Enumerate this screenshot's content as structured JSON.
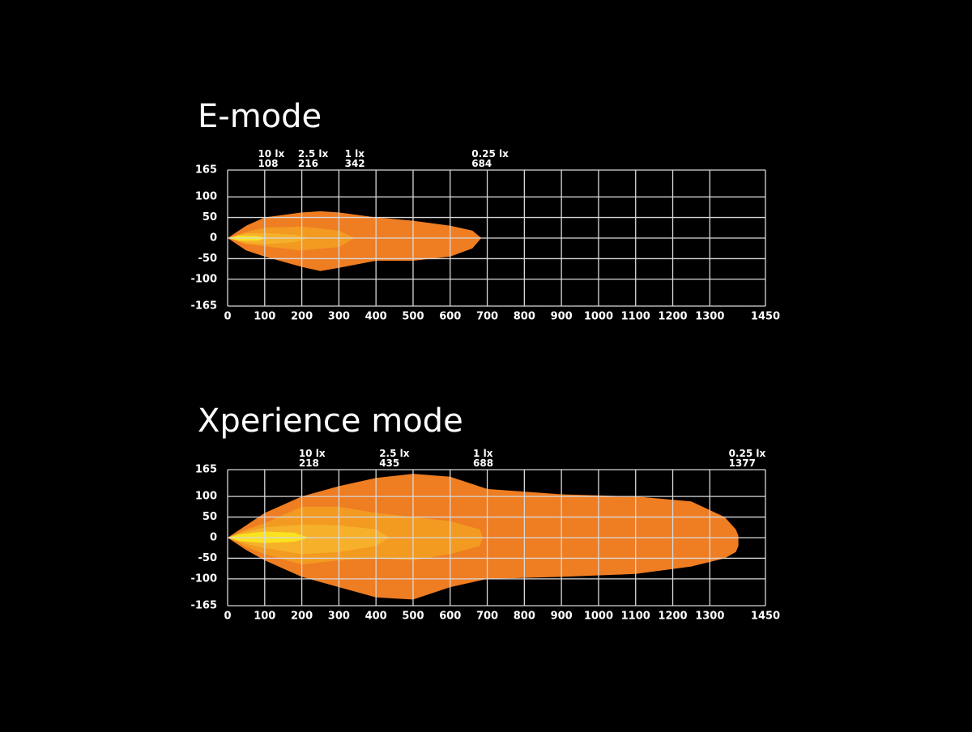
{
  "chart_data": [
    {
      "type": "isolux",
      "title": "E-mode",
      "xlim": [
        0,
        1450
      ],
      "ylim": [
        -165,
        165
      ],
      "xticks": [
        0,
        100,
        200,
        300,
        400,
        500,
        600,
        700,
        800,
        900,
        1000,
        1100,
        1200,
        1300,
        1450
      ],
      "yticks": [
        165,
        100,
        50,
        0,
        -50,
        -100,
        -165
      ],
      "grid": true,
      "series": [
        {
          "name": "0.25 lx",
          "reach": 684,
          "color": "#ef7d22",
          "x": [
            0,
            50,
            100,
            200,
            250,
            300,
            400,
            500,
            600,
            660,
            684
          ],
          "upper": [
            0,
            30,
            50,
            62,
            65,
            62,
            50,
            42,
            30,
            18,
            0
          ],
          "lower": [
            0,
            -30,
            -45,
            -70,
            -80,
            -72,
            -55,
            -55,
            -45,
            -25,
            0
          ]
        },
        {
          "name": "1 lx",
          "reach": 342,
          "color": "#f39a21",
          "x": [
            0,
            50,
            100,
            200,
            300,
            342
          ],
          "upper": [
            0,
            15,
            25,
            28,
            18,
            0
          ],
          "lower": [
            0,
            -15,
            -20,
            -30,
            -22,
            0
          ]
        },
        {
          "name": "2.5 lx",
          "reach": 216,
          "color": "#f6b02a",
          "x": [
            0,
            50,
            100,
            180,
            216
          ],
          "upper": [
            0,
            12,
            12,
            8,
            0
          ],
          "lower": [
            0,
            -12,
            -15,
            -10,
            0
          ]
        },
        {
          "name": "10 lx",
          "reach": 108,
          "color": "#fbe21e",
          "x": [
            0,
            30,
            80,
            108
          ],
          "upper": [
            0,
            6,
            5,
            0
          ],
          "lower": [
            0,
            -6,
            -6,
            0
          ]
        }
      ]
    },
    {
      "type": "isolux",
      "title": "Xperience mode",
      "xlim": [
        0,
        1450
      ],
      "ylim": [
        -165,
        165
      ],
      "xticks": [
        0,
        100,
        200,
        300,
        400,
        500,
        600,
        700,
        800,
        900,
        1000,
        1100,
        1200,
        1300,
        1450
      ],
      "yticks": [
        165,
        100,
        50,
        0,
        -50,
        -100,
        -165
      ],
      "grid": true,
      "series": [
        {
          "name": "0.25 lx",
          "reach": 1377,
          "color": "#ef7d22",
          "x": [
            0,
            50,
            100,
            200,
            300,
            400,
            500,
            600,
            700,
            900,
            1100,
            1250,
            1340,
            1370,
            1377
          ],
          "upper": [
            0,
            30,
            60,
            100,
            125,
            145,
            155,
            148,
            118,
            105,
            100,
            88,
            50,
            20,
            5
          ],
          "lower": [
            0,
            -30,
            -55,
            -95,
            -120,
            -145,
            -150,
            -120,
            -100,
            -95,
            -88,
            -70,
            -50,
            -35,
            -20
          ]
        },
        {
          "name": "1 lx",
          "reach": 688,
          "color": "#f39a21",
          "x": [
            0,
            50,
            100,
            200,
            300,
            400,
            500,
            600,
            680,
            688
          ],
          "upper": [
            0,
            20,
            35,
            75,
            75,
            60,
            50,
            40,
            20,
            0
          ],
          "lower": [
            0,
            -22,
            -40,
            -65,
            -55,
            -50,
            -55,
            -40,
            -20,
            0
          ]
        },
        {
          "name": "2.5 lx",
          "reach": 435,
          "color": "#f6b02a",
          "x": [
            0,
            50,
            100,
            200,
            300,
            400,
            435
          ],
          "upper": [
            0,
            15,
            25,
            32,
            30,
            20,
            0
          ],
          "lower": [
            0,
            -15,
            -25,
            -40,
            -35,
            -20,
            0
          ]
        },
        {
          "name": "10 lx",
          "reach": 218,
          "color": "#fbe21e",
          "x": [
            0,
            30,
            100,
            180,
            218
          ],
          "upper": [
            0,
            8,
            15,
            12,
            0
          ],
          "lower": [
            0,
            -8,
            -13,
            -10,
            0
          ]
        }
      ]
    }
  ]
}
